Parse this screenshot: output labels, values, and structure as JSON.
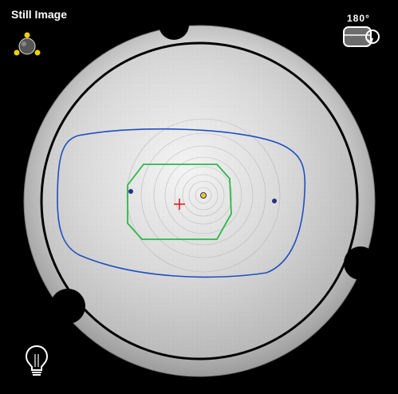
{
  "header": {
    "title": "Still Image"
  },
  "rotation": {
    "label": "180°",
    "icon": "rotate-icon"
  },
  "tools": {
    "navigator_icon": "orbit-navigator-icon",
    "light_icon": "lightbulb-icon"
  },
  "colors": {
    "outer_ring": "#c8c8c8",
    "lens_face": "#d7d7d7",
    "blue_outline": "#1f4fbf",
    "green_outline": "#2db84a",
    "center_cross": "#e02020",
    "marker": "#27308a",
    "notch": "#000000",
    "accent_yellow": "#f2d000"
  }
}
